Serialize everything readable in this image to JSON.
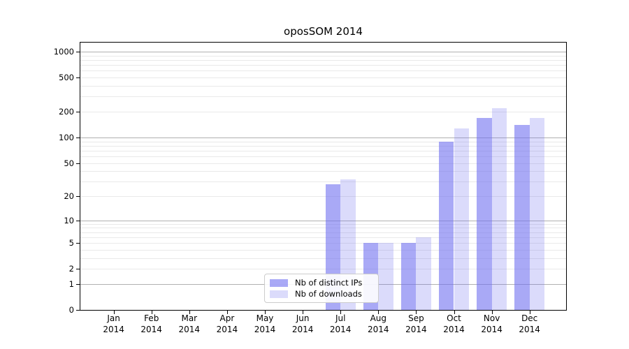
{
  "title": "oposSOM 2014",
  "chart_data": {
    "type": "bar",
    "title": "oposSOM 2014",
    "categories": [
      "Jan",
      "Feb",
      "Mar",
      "Apr",
      "May",
      "Jun",
      "Jul",
      "Aug",
      "Sep",
      "Oct",
      "Nov",
      "Dec"
    ],
    "category_year": "2014",
    "series": [
      {
        "name": "Nb of distinct IPs",
        "key": "distinct-ips",
        "color": "rgba(112,112,240,0.60)",
        "values": [
          0,
          0,
          0,
          0,
          0,
          0,
          28,
          5,
          5,
          90,
          170,
          140
        ]
      },
      {
        "name": "Nb of downloads",
        "key": "downloads",
        "color": "rgba(112,112,240,0.25)",
        "values": [
          0,
          0,
          0,
          0,
          0,
          0,
          32,
          5,
          6,
          128,
          220,
          168
        ]
      }
    ],
    "yscale": "log10(value+1)",
    "yticks": [
      0,
      1,
      2,
      5,
      10,
      20,
      50,
      100,
      200,
      500,
      1000
    ],
    "ylim": [
      0,
      1300
    ],
    "grid": {
      "minor_color": "#e9e9e9",
      "major_color": "#b0b0b0",
      "major_levels": [
        1,
        10,
        100,
        1000
      ]
    },
    "legend_position": "lower center",
    "axis_color": "#000000"
  }
}
